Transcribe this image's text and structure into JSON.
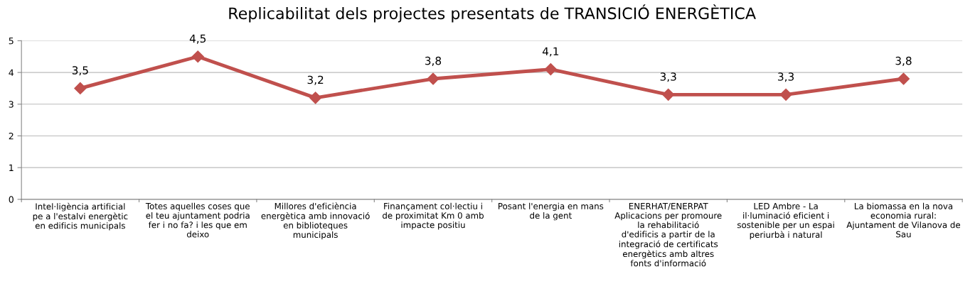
{
  "chart_data": {
    "type": "line",
    "title": "Replicabilitat dels projectes presentats de TRANSICIÓ ENERGÈTICA",
    "categories": [
      "Intel·ligència artificial pe a l'estalvi energètic en edificis municipals",
      "Totes aquelles coses que el teu ajuntament podria fer i no fa? i les que em deixo",
      "Millores d'eficiència energètica amb innovació en biblioteques municipals",
      "Finançament col·lectiu i de proximitat Km 0 amb impacte positiu",
      "Posant l'energia en mans de la gent",
      "ENERHAT/ENERPAT Aplicacions per promoure la rehabilitació d'edificis a partir de la integració de certificats energètics amb altres fonts d'informació",
      "LED Ambre - La il·luminació eficient i sostenible per un espai periurbà i natural",
      "La biomassa en la nova economia rural: Ajuntament de Vilanova de Sau"
    ],
    "series": [
      {
        "color": "#c0504d",
        "values": [
          3.5,
          4.5,
          3.2,
          3.8,
          4.1,
          3.3,
          3.3,
          3.8
        ],
        "value_labels": [
          "3,5",
          "4,5",
          "3,2",
          "3,8",
          "4,1",
          "3,3",
          "3,3",
          "3,8"
        ]
      }
    ],
    "ylim": [
      0,
      5
    ],
    "yticks": [
      0,
      1,
      2,
      3,
      4,
      5
    ],
    "grid": "y",
    "marker": "diamond",
    "line_style": "solid"
  }
}
